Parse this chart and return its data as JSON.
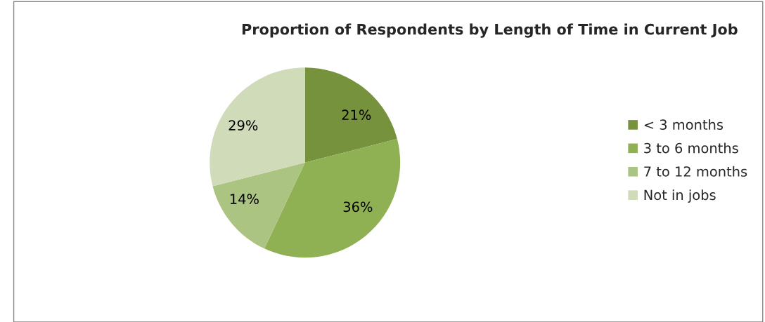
{
  "chart_data": {
    "type": "pie",
    "title": "Proportion of Respondents by Length of Time in Current Job",
    "categories": [
      "< 3 months",
      "3 to 6 months",
      "7 to 12 months",
      "Not in jobs"
    ],
    "values": [
      21,
      36,
      14,
      29
    ],
    "colors": [
      "#77923c",
      "#8fb153",
      "#abc481",
      "#cfdbb9"
    ],
    "value_labels": [
      "21%",
      "36%",
      "14%",
      "29%"
    ],
    "legend": "right"
  }
}
